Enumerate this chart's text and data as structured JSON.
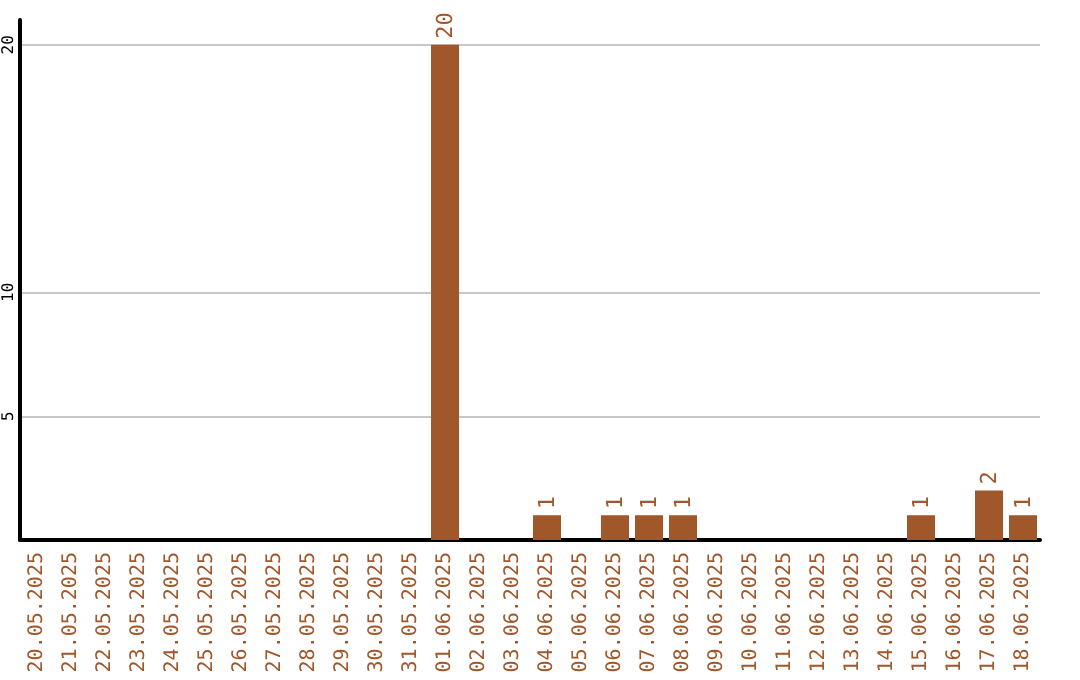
{
  "chart_data": {
    "type": "bar",
    "categories": [
      "20.05.2025",
      "21.05.2025",
      "22.05.2025",
      "23.05.2025",
      "24.05.2025",
      "25.05.2025",
      "26.05.2025",
      "27.05.2025",
      "28.05.2025",
      "29.05.2025",
      "30.05.2025",
      "31.05.2025",
      "01.06.2025",
      "02.06.2025",
      "03.06.2025",
      "04.06.2025",
      "05.06.2025",
      "06.06.2025",
      "07.06.2025",
      "08.06.2025",
      "09.06.2025",
      "10.06.2025",
      "11.06.2025",
      "12.06.2025",
      "13.06.2025",
      "14.06.2025",
      "15.06.2025",
      "16.06.2025",
      "17.06.2025",
      "18.06.2025"
    ],
    "values": [
      0,
      0,
      0,
      0,
      0,
      0,
      0,
      0,
      0,
      0,
      0,
      0,
      20,
      0,
      0,
      1,
      0,
      1,
      1,
      1,
      0,
      0,
      0,
      0,
      0,
      0,
      1,
      0,
      2,
      1
    ],
    "value_labels": [
      null,
      null,
      null,
      null,
      null,
      null,
      null,
      null,
      null,
      null,
      null,
      null,
      "20",
      null,
      null,
      "1",
      null,
      "1",
      "1",
      "1",
      null,
      null,
      null,
      null,
      null,
      null,
      "1",
      null,
      "2",
      "1"
    ],
    "color": "#a0572a",
    "ylim": [
      0,
      21
    ],
    "yticks": [
      5,
      10,
      20
    ],
    "grid": "y"
  }
}
